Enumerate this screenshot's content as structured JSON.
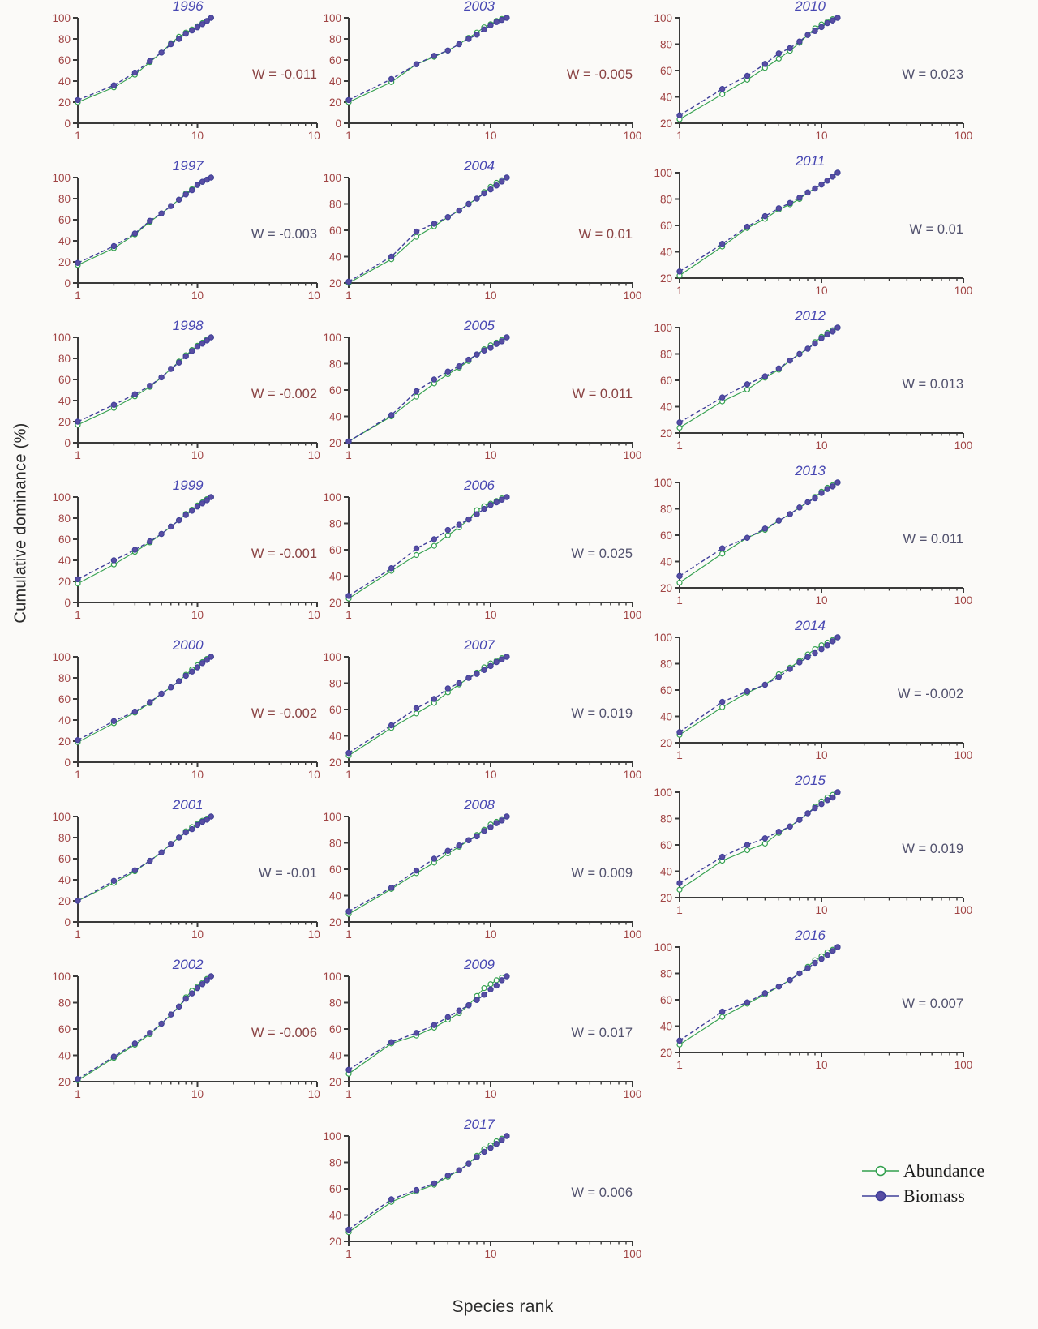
{
  "figure": {
    "y_axis_label": "Cumulative dominance (%)",
    "x_axis_label": "Species rank",
    "legend": {
      "abundance_label": "Abundance",
      "biomass_label": "Biomass"
    },
    "colors": {
      "background": "#fbfaf8",
      "axis": "#3a3a3a",
      "tick_label": "#a04444",
      "year_title": "#4747b2",
      "abundance": "#33a04e",
      "abundance_marker_fill": "#ffffff",
      "biomass_line": "#3f3f99",
      "biomass_marker_fill": "#584da3",
      "w_maroon": "#8a4343",
      "w_navy": "#52526e",
      "legend_text": "#1c1c1c"
    }
  },
  "chart_data": {
    "type": "line",
    "x_scale": "log",
    "x": [
      1,
      2,
      3,
      4,
      5,
      6,
      7,
      8,
      9,
      10,
      11,
      12,
      13
    ],
    "x_ticks": [
      1,
      10,
      100
    ],
    "xlim": [
      1,
      100
    ],
    "y_tick_step": 20,
    "series_names": [
      "Abundance",
      "Biomass"
    ],
    "panels": [
      {
        "year": "1996",
        "col": 1,
        "w_label": "W = -0.011",
        "w_color": "maroon",
        "ymin": 0,
        "abundance": [
          20,
          34,
          46,
          58,
          67,
          76,
          82,
          86,
          89,
          92,
          95,
          97,
          100
        ],
        "biomass": [
          22,
          36,
          48,
          59,
          67,
          75,
          80,
          85,
          88,
          91,
          94,
          97,
          100
        ]
      },
      {
        "year": "1997",
        "col": 1,
        "w_label": "W = -0.003",
        "w_color": "navy",
        "ymin": 0,
        "abundance": [
          17,
          33,
          46,
          58,
          66,
          73,
          79,
          85,
          89,
          93,
          96,
          98,
          100
        ],
        "biomass": [
          19,
          35,
          47,
          59,
          66,
          73,
          79,
          84,
          88,
          93,
          96,
          98,
          100
        ]
      },
      {
        "year": "1998",
        "col": 1,
        "w_label": "W = -0.002",
        "w_color": "maroon",
        "ymin": 0,
        "abundance": [
          17,
          33,
          44,
          53,
          62,
          70,
          77,
          83,
          88,
          92,
          95,
          98,
          100
        ],
        "biomass": [
          20,
          36,
          46,
          54,
          62,
          70,
          76,
          82,
          87,
          91,
          94,
          97,
          100
        ]
      },
      {
        "year": "1999",
        "col": 1,
        "w_label": "W = -0.001",
        "w_color": "maroon",
        "ymin": 0,
        "abundance": [
          18,
          36,
          48,
          57,
          65,
          72,
          78,
          84,
          88,
          92,
          95,
          98,
          100
        ],
        "biomass": [
          22,
          40,
          50,
          58,
          65,
          72,
          78,
          83,
          87,
          91,
          94,
          97,
          100
        ]
      },
      {
        "year": "2000",
        "col": 1,
        "w_label": "W = -0.002",
        "w_color": "maroon",
        "ymin": 0,
        "abundance": [
          19,
          37,
          47,
          56,
          65,
          71,
          77,
          83,
          88,
          92,
          95,
          98,
          100
        ],
        "biomass": [
          21,
          39,
          48,
          57,
          65,
          71,
          77,
          82,
          86,
          90,
          94,
          97,
          100
        ]
      },
      {
        "year": "2001",
        "col": 1,
        "w_label": "W = -0.01",
        "w_color": "navy",
        "ymin": 0,
        "abundance": [
          20,
          37,
          48,
          58,
          66,
          74,
          80,
          86,
          90,
          93,
          96,
          98,
          100
        ],
        "biomass": [
          20,
          39,
          49,
          58,
          66,
          74,
          80,
          85,
          88,
          92,
          95,
          97,
          100
        ]
      },
      {
        "year": "2002",
        "col": 1,
        "w_label": "W = -0.006",
        "w_color": "maroon",
        "ymin": 20,
        "abundance": [
          21,
          38,
          48,
          56,
          64,
          71,
          77,
          84,
          89,
          92,
          95,
          98,
          100
        ],
        "biomass": [
          22,
          39,
          49,
          57,
          64,
          71,
          77,
          83,
          87,
          91,
          94,
          97,
          100
        ]
      },
      {
        "year": "2003",
        "col": 2,
        "w_label": "W = -0.005",
        "w_color": "maroon",
        "ymin": 0,
        "abundance": [
          20,
          39,
          56,
          63,
          69,
          75,
          81,
          86,
          91,
          94,
          97,
          99,
          100
        ],
        "biomass": [
          22,
          42,
          56,
          64,
          69,
          75,
          80,
          84,
          89,
          93,
          96,
          98,
          100
        ]
      },
      {
        "year": "2004",
        "col": 2,
        "w_label": "W = 0.01",
        "w_color": "maroon",
        "ymin": 20,
        "abundance": [
          20,
          38,
          55,
          63,
          70,
          75,
          80,
          84,
          89,
          93,
          96,
          98,
          100
        ],
        "biomass": [
          21,
          40,
          59,
          65,
          70,
          75,
          80,
          84,
          88,
          91,
          94,
          97,
          100
        ]
      },
      {
        "year": "2005",
        "col": 2,
        "w_label": "W = 0.011",
        "w_color": "maroon",
        "ymin": 20,
        "abundance": [
          21,
          40,
          55,
          65,
          72,
          77,
          82,
          87,
          91,
          94,
          96,
          98,
          100
        ],
        "biomass": [
          21,
          41,
          59,
          68,
          74,
          78,
          83,
          87,
          90,
          92,
          95,
          97,
          100
        ]
      },
      {
        "year": "2006",
        "col": 2,
        "w_label": "W = 0.025",
        "w_color": "navy",
        "ymin": 20,
        "abundance": [
          23,
          44,
          56,
          63,
          71,
          77,
          83,
          90,
          93,
          95,
          97,
          99,
          100
        ],
        "biomass": [
          25,
          46,
          61,
          68,
          75,
          79,
          83,
          87,
          91,
          94,
          96,
          98,
          100
        ]
      },
      {
        "year": "2007",
        "col": 2,
        "w_label": "W = 0.019",
        "w_color": "navy",
        "ymin": 20,
        "abundance": [
          25,
          46,
          57,
          65,
          73,
          79,
          84,
          88,
          92,
          95,
          97,
          99,
          100
        ],
        "biomass": [
          27,
          48,
          61,
          68,
          76,
          80,
          84,
          87,
          90,
          93,
          96,
          98,
          100
        ]
      },
      {
        "year": "2008",
        "col": 2,
        "w_label": "W = 0.009",
        "w_color": "navy",
        "ymin": 20,
        "abundance": [
          26,
          45,
          57,
          65,
          72,
          77,
          82,
          86,
          90,
          94,
          96,
          98,
          100
        ],
        "biomass": [
          28,
          46,
          59,
          68,
          74,
          78,
          82,
          85,
          89,
          92,
          95,
          97,
          100
        ]
      },
      {
        "year": "2009",
        "col": 2,
        "w_label": "W = 0.017",
        "w_color": "navy",
        "ymin": 20,
        "abundance": [
          26,
          49,
          55,
          61,
          67,
          72,
          78,
          85,
          91,
          94,
          97,
          99,
          100
        ],
        "biomass": [
          29,
          50,
          57,
          63,
          69,
          74,
          78,
          82,
          86,
          90,
          93,
          97,
          100
        ]
      },
      {
        "year": "2017",
        "col": 2,
        "w_label": "W = 0.006",
        "w_color": "navy",
        "ymin": 20,
        "abundance": [
          27,
          50,
          58,
          63,
          69,
          74,
          79,
          85,
          90,
          93,
          96,
          98,
          100
        ],
        "biomass": [
          29,
          52,
          59,
          64,
          70,
          74,
          79,
          84,
          88,
          91,
          94,
          97,
          100
        ]
      },
      {
        "year": "2010",
        "col": 3,
        "w_label": "W = 0.023",
        "w_color": "navy",
        "ymin": 20,
        "abundance": [
          23,
          42,
          53,
          62,
          69,
          75,
          81,
          87,
          92,
          95,
          97,
          99,
          100
        ],
        "biomass": [
          26,
          46,
          56,
          65,
          73,
          77,
          82,
          87,
          90,
          93,
          96,
          98,
          100
        ]
      },
      {
        "year": "2011",
        "col": 3,
        "w_label": "W = 0.01",
        "w_color": "navy",
        "ymin": 20,
        "abundance": [
          22,
          44,
          58,
          65,
          72,
          76,
          80,
          85,
          88,
          91,
          94,
          97,
          100
        ],
        "biomass": [
          25,
          46,
          59,
          67,
          73,
          77,
          81,
          85,
          88,
          91,
          94,
          97,
          100
        ]
      },
      {
        "year": "2012",
        "col": 3,
        "w_label": "W = 0.013",
        "w_color": "navy",
        "ymin": 20,
        "abundance": [
          24,
          44,
          53,
          62,
          68,
          75,
          80,
          84,
          89,
          93,
          96,
          98,
          100
        ],
        "biomass": [
          28,
          47,
          57,
          63,
          69,
          75,
          80,
          84,
          88,
          92,
          95,
          97,
          100
        ]
      },
      {
        "year": "2013",
        "col": 3,
        "w_label": "W = 0.011",
        "w_color": "navy",
        "ymin": 20,
        "abundance": [
          24,
          46,
          58,
          64,
          71,
          76,
          81,
          85,
          89,
          93,
          96,
          98,
          100
        ],
        "biomass": [
          29,
          50,
          58,
          65,
          71,
          76,
          81,
          85,
          88,
          92,
          95,
          97,
          100
        ]
      },
      {
        "year": "2014",
        "col": 3,
        "w_label": "W = -0.002",
        "w_color": "navy",
        "ymin": 20,
        "abundance": [
          26,
          47,
          58,
          64,
          72,
          77,
          82,
          87,
          91,
          94,
          96,
          98,
          100
        ],
        "biomass": [
          28,
          51,
          59,
          64,
          70,
          76,
          81,
          85,
          88,
          91,
          94,
          97,
          100
        ]
      },
      {
        "year": "2015",
        "col": 3,
        "w_label": "W = 0.019",
        "w_color": "navy",
        "ymin": 20,
        "abundance": [
          26,
          48,
          56,
          61,
          69,
          74,
          79,
          84,
          89,
          93,
          96,
          98,
          100
        ],
        "biomass": [
          31,
          51,
          60,
          65,
          70,
          74,
          79,
          84,
          88,
          91,
          94,
          96,
          100
        ]
      },
      {
        "year": "2016",
        "col": 3,
        "w_label": "W = 0.007",
        "w_color": "navy",
        "ymin": 20,
        "abundance": [
          26,
          47,
          57,
          64,
          70,
          75,
          80,
          85,
          90,
          93,
          96,
          98,
          100
        ],
        "biomass": [
          29,
          51,
          58,
          65,
          70,
          75,
          80,
          84,
          88,
          91,
          94,
          97,
          100
        ]
      }
    ]
  }
}
